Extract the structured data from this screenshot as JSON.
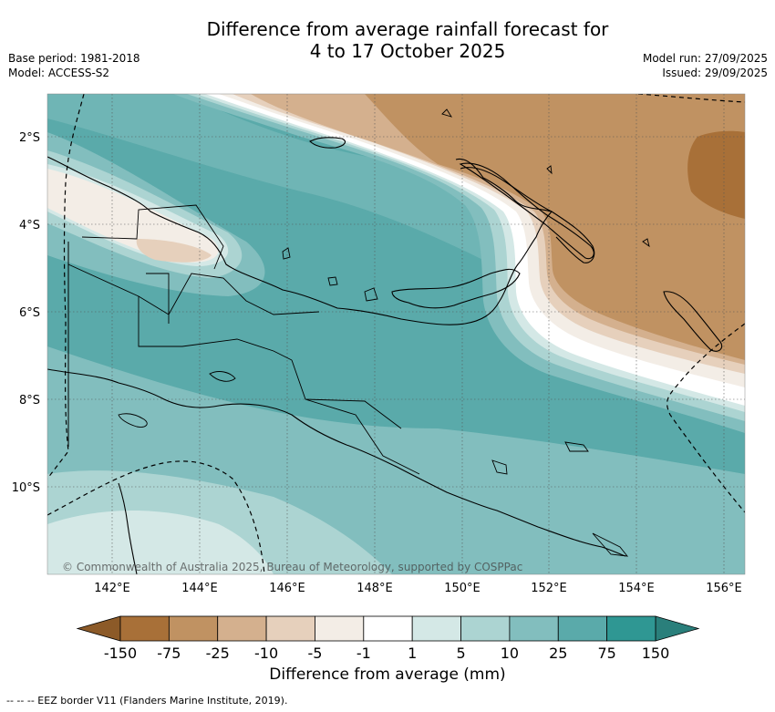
{
  "title_line1": "Difference from average rainfall forecast for",
  "title_line2": "4 to 17 October 2025",
  "base_period": "Base period: 1981-2018",
  "model": "Model: ACCESS-S2",
  "model_run": "Model run: 27/09/2025",
  "issued": "Issued: 29/09/2025",
  "lat_labels": [
    "2°S",
    "4°S",
    "6°S",
    "8°S",
    "10°S"
  ],
  "lon_labels": [
    "142°E",
    "144°E",
    "146°E",
    "148°E",
    "150°E",
    "152°E",
    "154°E",
    "156°E"
  ],
  "copyright": "© Commonwealth of Australia 2025, Bureau of Meteorology, supported by COSPPac",
  "colorbar": {
    "ticks": [
      "-150",
      "-75",
      "-25",
      "-10",
      "-5",
      "-1",
      "1",
      "5",
      "10",
      "25",
      "75",
      "150"
    ],
    "colors": [
      "#a87038",
      "#c09262",
      "#d4b08e",
      "#e6d0bc",
      "#f3ede6",
      "#ffffff",
      "#d4e8e6",
      "#acd4d2",
      "#82bebe",
      "#5aaaaa",
      "#2f9793"
    ],
    "extend_low": "#8c5a28",
    "extend_high": "#2a7f7b",
    "title": "Difference from average (mm)"
  },
  "footnote": "-- -- -- EEZ border V11 (Flanders Marine Institute, 2019)."
}
